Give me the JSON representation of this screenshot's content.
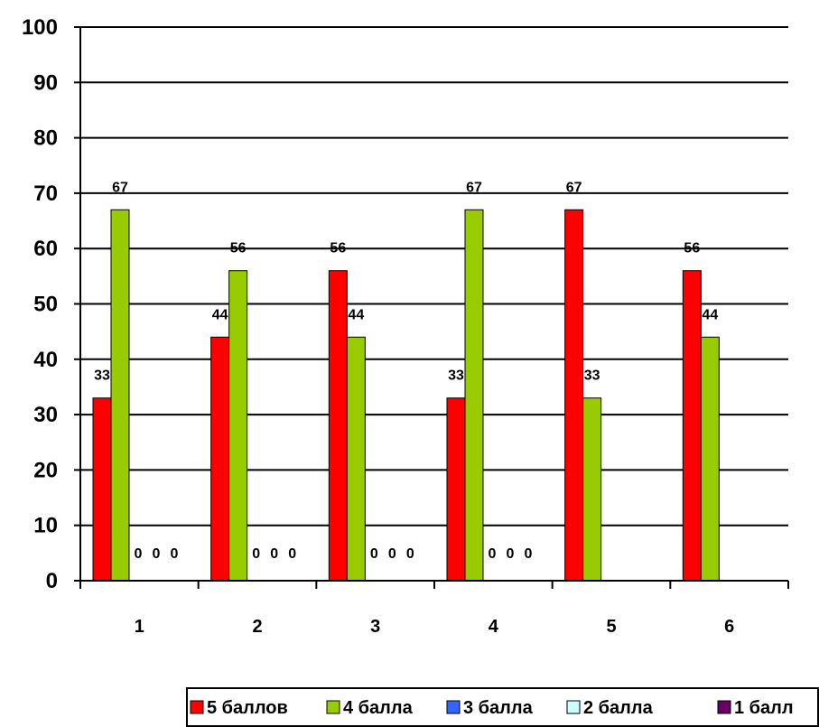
{
  "chart_data": {
    "type": "bar",
    "categories": [
      "1",
      "2",
      "3",
      "4",
      "5",
      "6"
    ],
    "series": [
      {
        "name": "5 баллов",
        "color": "#ff0000",
        "values": [
          33,
          44,
          56,
          33,
          67,
          56
        ]
      },
      {
        "name": "4 балла",
        "color": "#99cc00",
        "values": [
          67,
          56,
          44,
          67,
          33,
          44
        ]
      },
      {
        "name": "3 балла",
        "color": "#3366ff",
        "values": [
          0,
          0,
          0,
          0,
          null,
          null
        ]
      },
      {
        "name": "2 балла",
        "color": "#ccffff",
        "values": [
          0,
          0,
          0,
          0,
          null,
          null
        ]
      },
      {
        "name": "1 балл",
        "color": "#660066",
        "values": [
          0,
          0,
          0,
          0,
          null,
          null
        ]
      }
    ],
    "ylim": [
      0,
      100
    ],
    "yticks": [
      "0",
      "10",
      "20",
      "30",
      "40",
      "50",
      "60",
      "70",
      "80",
      "90",
      "100"
    ],
    "grid": true,
    "legend_position": "bottom-right"
  }
}
